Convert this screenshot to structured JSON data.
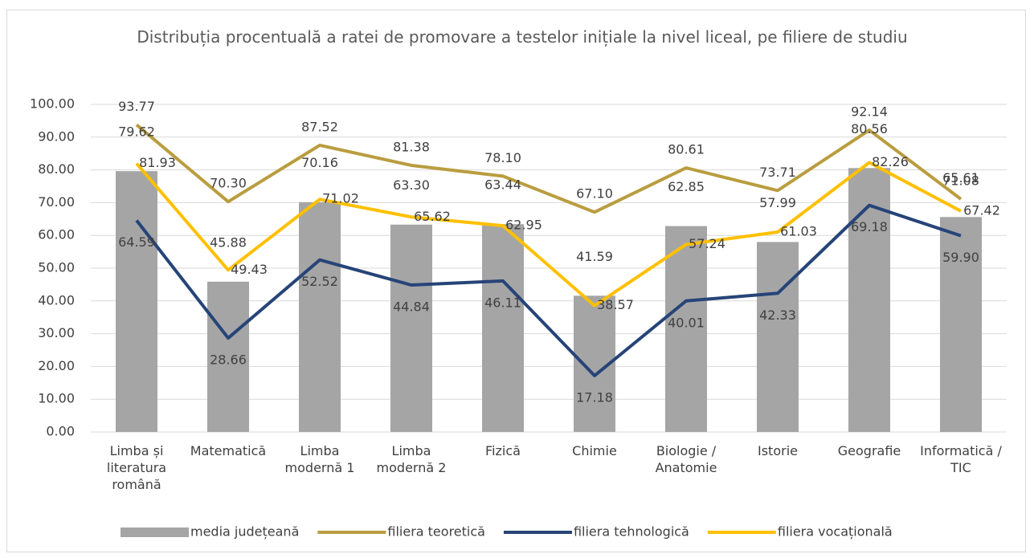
{
  "chart_data": {
    "type": "bar-line",
    "title": "Distribuția procentuală a ratei de promovare a testelor inițiale la nivel liceal, pe filiere de studiu",
    "categories": [
      "Limba și literatura română",
      "Matematică",
      "Limba modernă 1",
      "Limba modernă 2",
      "Fizică",
      "Chimie",
      "Biologie / Anatomie",
      "Istorie",
      "Geografie",
      "Informatică / TIC"
    ],
    "series": [
      {
        "name": "media județeană",
        "type": "bar",
        "color": "#a5a5a5",
        "values": [
          79.62,
          45.88,
          70.16,
          63.3,
          63.44,
          41.59,
          62.85,
          57.99,
          80.56,
          65.61
        ],
        "value_labels": [
          "79.62",
          "45.88",
          "70.16",
          "63.30",
          "63.44",
          "41.59",
          "62.85",
          "57.99",
          "80.56",
          "65.61"
        ]
      },
      {
        "name": "filiera teoretică",
        "type": "line",
        "color": "#b99d3f",
        "values": [
          93.77,
          70.3,
          87.52,
          81.38,
          78.1,
          67.1,
          80.61,
          73.71,
          92.14,
          71.08
        ],
        "value_labels": [
          "93.77",
          "70.30",
          "87.52",
          "81.38",
          "78.10",
          "67.10",
          "80.61",
          "73.71",
          "92.14",
          "71.08"
        ]
      },
      {
        "name": "filiera tehnologică",
        "type": "line",
        "color": "#264478",
        "values": [
          64.59,
          28.66,
          52.52,
          44.84,
          46.11,
          17.18,
          40.01,
          42.33,
          69.18,
          59.9
        ],
        "value_labels": [
          "64.59",
          "28.66",
          "52.52",
          "44.84",
          "46.11",
          "17.18",
          "40.01",
          "42.33",
          "69.18",
          "59.90"
        ]
      },
      {
        "name": "filiera vocațională",
        "type": "line",
        "color": "#ffc000",
        "values": [
          81.93,
          49.43,
          71.02,
          65.62,
          62.95,
          38.57,
          57.24,
          61.03,
          82.26,
          67.42
        ],
        "value_labels": [
          "81.93",
          "49.43",
          "71.02",
          "65.62",
          "62.95",
          "38.57",
          "57.24",
          "61.03",
          "82.26",
          "67.42"
        ]
      }
    ],
    "ylim": [
      0,
      100
    ],
    "yticks": [
      {
        "value": 0,
        "label": "0.00"
      },
      {
        "value": 10,
        "label": "10.00"
      },
      {
        "value": 20,
        "label": "20.00"
      },
      {
        "value": 30,
        "label": "30.00"
      },
      {
        "value": 40,
        "label": "40.00"
      },
      {
        "value": 50,
        "label": "50.00"
      },
      {
        "value": 60,
        "label": "60.00"
      },
      {
        "value": 70,
        "label": "70.00"
      },
      {
        "value": 80,
        "label": "80.00"
      },
      {
        "value": 90,
        "label": "90.00"
      },
      {
        "value": 100,
        "label": "100.00"
      }
    ],
    "grid": true,
    "legend": "bottom"
  }
}
